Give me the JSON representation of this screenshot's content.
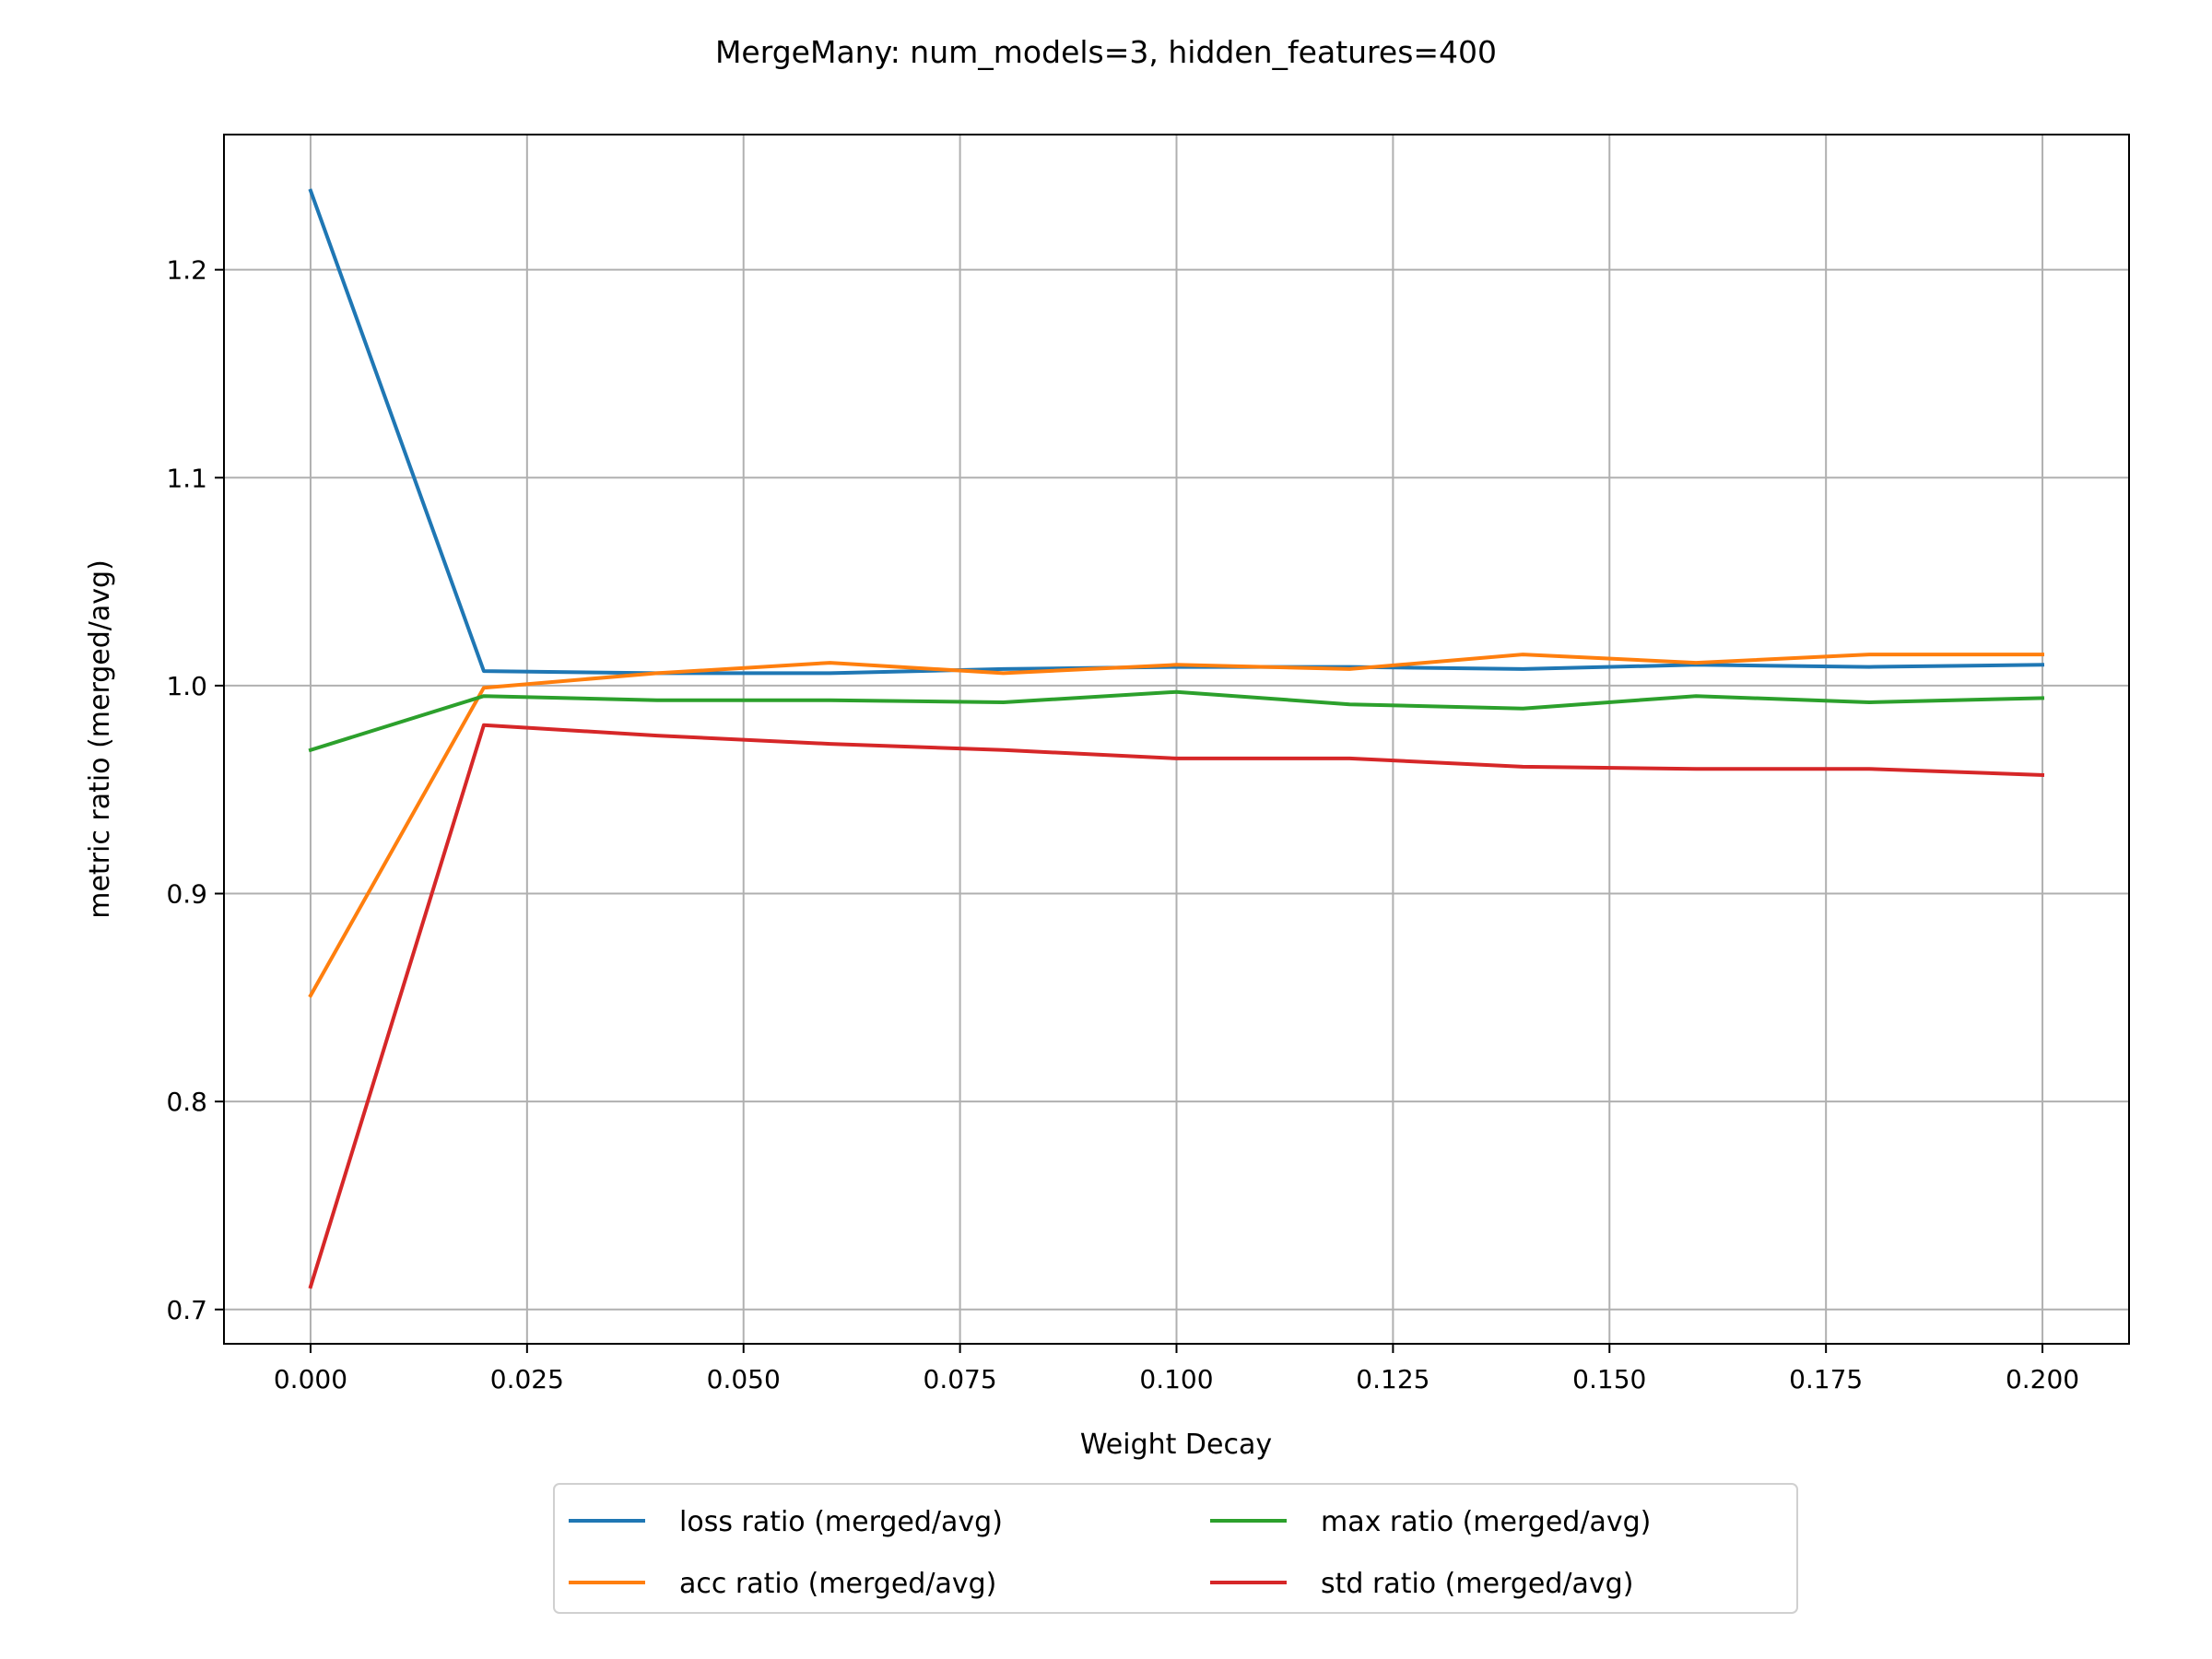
{
  "chart_data": {
    "type": "line",
    "title": "MergeMany: num_models=3, hidden_features=400",
    "xlabel": "Weight Decay",
    "ylabel": "metric ratio (merged/avg)",
    "xlim": [
      -0.01,
      0.21
    ],
    "ylim": [
      0.6835,
      1.265
    ],
    "xticks": [
      "0.000",
      "0.025",
      "0.050",
      "0.075",
      "0.100",
      "0.125",
      "0.150",
      "0.175",
      "0.200"
    ],
    "yticks": [
      "0.7",
      "0.8",
      "0.9",
      "1.0",
      "1.1",
      "1.2"
    ],
    "grid": true,
    "legend_position": "bottom-center",
    "x": [
      0.0,
      0.02,
      0.04,
      0.06,
      0.08,
      0.1,
      0.12,
      0.14,
      0.16,
      0.18,
      0.2
    ],
    "series": [
      {
        "name": "loss ratio (merged/avg)",
        "color": "#1f77b4",
        "values": [
          1.238,
          1.007,
          1.006,
          1.006,
          1.008,
          1.009,
          1.009,
          1.008,
          1.01,
          1.009,
          1.01
        ]
      },
      {
        "name": "acc ratio (merged/avg)",
        "color": "#ff7f0e",
        "values": [
          0.851,
          0.999,
          1.006,
          1.011,
          1.006,
          1.01,
          1.008,
          1.015,
          1.011,
          1.015,
          1.015
        ]
      },
      {
        "name": "max ratio (merged/avg)",
        "color": "#2ca02c",
        "values": [
          0.969,
          0.995,
          0.993,
          0.993,
          0.992,
          0.997,
          0.991,
          0.989,
          0.995,
          0.992,
          0.994
        ]
      },
      {
        "name": "std ratio (merged/avg)",
        "color": "#d62728",
        "values": [
          0.711,
          0.981,
          0.976,
          0.972,
          0.969,
          0.965,
          0.965,
          0.961,
          0.96,
          0.96,
          0.957
        ]
      }
    ]
  }
}
